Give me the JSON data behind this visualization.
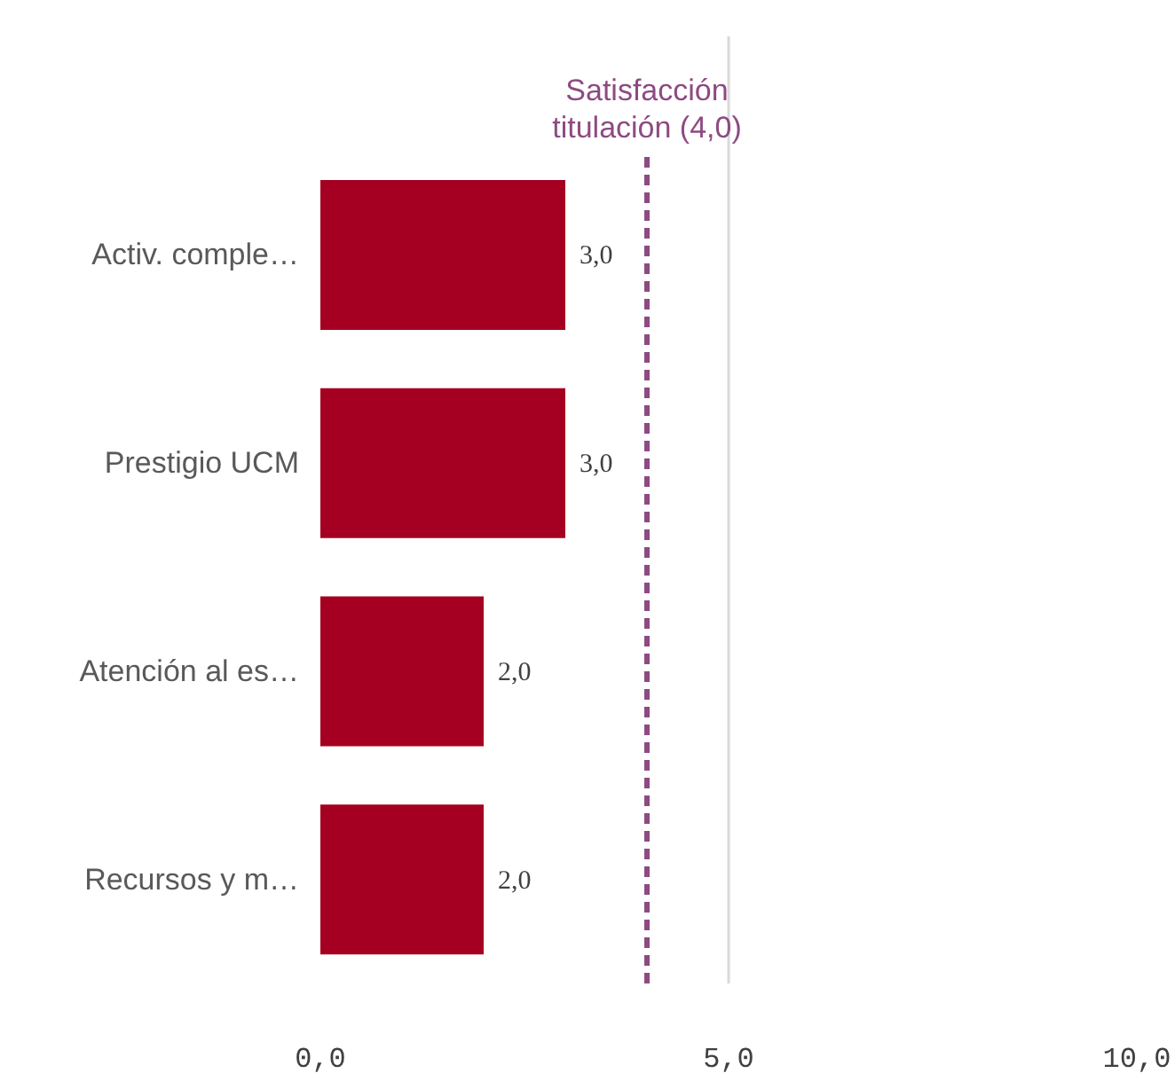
{
  "chart_data": {
    "type": "bar",
    "orientation": "horizontal",
    "categories": [
      "Activ. comple…",
      "Prestigio UCM",
      "Atención al es…",
      "Recursos y m…"
    ],
    "values": [
      3,
      3,
      2,
      2
    ],
    "color": "#a50021",
    "value_labels": [
      "3,0",
      "3,0",
      "2,0",
      "2,0"
    ],
    "xlim": [
      0,
      10
    ],
    "xticks": [
      {
        "value": 0,
        "label": "0,0"
      },
      {
        "value": 5,
        "label": "5,0"
      },
      {
        "value": 10,
        "label": "10,0"
      }
    ],
    "grid": "x",
    "ref_lines": [
      {
        "axis": "x",
        "value": 4,
        "label": "Satisfacción\ntitulación (4,0)",
        "color": "#8e4a82",
        "line_style": "dashed"
      }
    ]
  }
}
